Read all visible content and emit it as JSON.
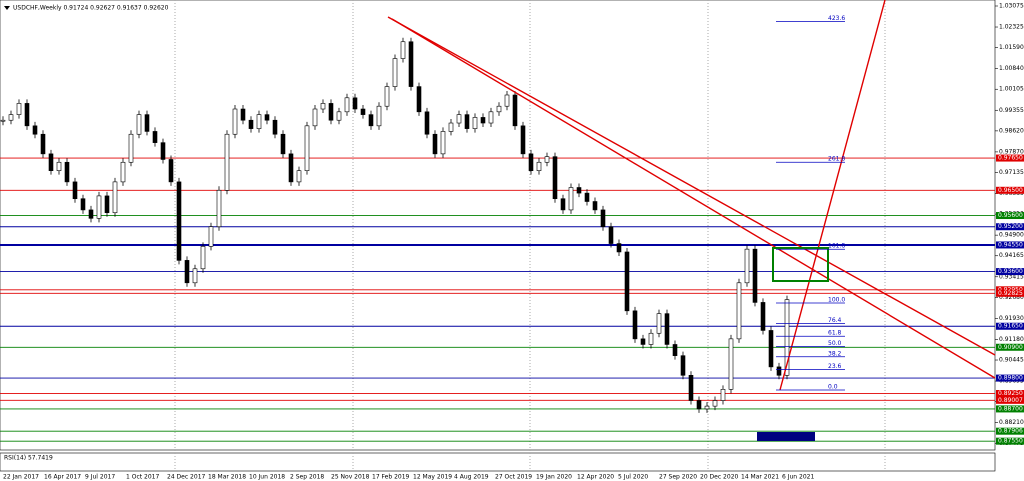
{
  "chart_data": {
    "type": "candlestick",
    "title": "USDCHF,Weekly  0.91724 0.92627 0.91637 0.92620",
    "indicator_label": "RSI(14) 57.7419",
    "values": [
      0.99,
      0.992,
      0.996,
      0.988,
      0.985,
      0.978,
      0.972,
      0.975,
      0.968,
      0.962,
      0.958,
      0.955,
      0.963,
      0.957,
      0.968,
      0.975,
      0.985,
      0.992,
      0.986,
      0.982,
      0.976,
      0.968,
      0.94,
      0.932,
      0.937,
      0.945,
      0.952,
      0.965,
      0.985,
      0.994,
      0.99,
      0.987,
      0.992,
      0.99,
      0.985,
      0.978,
      0.968,
      0.972,
      0.988,
      0.994,
      0.996,
      0.99,
      0.993,
      0.998,
      0.994,
      0.992,
      0.988,
      0.995,
      1.002,
      1.012,
      1.018,
      1.002,
      0.993,
      0.985,
      0.978,
      0.986,
      0.989,
      0.992,
      0.987,
      0.991,
      0.989,
      0.993,
      0.995,
      0.999,
      0.988,
      0.978,
      0.972,
      0.975,
      0.977,
      0.962,
      0.958,
      0.966,
      0.964,
      0.961,
      0.958,
      0.952,
      0.946,
      0.943,
      0.922,
      0.912,
      0.91,
      0.914,
      0.921,
      0.91,
      0.906,
      0.899,
      0.89,
      0.887,
      0.888,
      0.89,
      0.894,
      0.912,
      0.932,
      0.944,
      0.925,
      0.915,
      0.902,
      0.899,
      0.926
    ],
    "xticks": [
      "22 Jan 2017",
      "16 Apr 2017",
      "9 Jul 2017",
      "1 Oct 2017",
      "24 Dec 2017",
      "18 Mar 2018",
      "10 Jun 2018",
      "2 Sep 2018",
      "25 Nov 2018",
      "17 Feb 2019",
      "12 May 2019",
      "4 Aug 2019",
      "27 Oct 2019",
      "19 Jan 2020",
      "12 Apr 2020",
      "5 Jul 2020",
      "27 Sep 2020",
      "20 Dec 2020",
      "14 Mar 2021",
      "6 Jun 2021"
    ],
    "ylim": [
      0.87235,
      1.03289
    ],
    "yticks": [
      1.03075,
      1.02325,
      {
        "value": 1.0159,
        "label": "1.01590"
      },
      {
        "value": 1.0084,
        "label": "1.00840"
      },
      1.00105,
      0.99355,
      {
        "value": 0.9862,
        "label": "0.98620"
      },
      {
        "value": 0.9787,
        "label": "0.97870"
      },
      0.97135,
      0.96385,
      {
        "value": 0.9565,
        "label": "0.95650"
      },
      {
        "value": 0.949,
        "label": "0.94900"
      },
      0.94165,
      0.93415,
      {
        "value": 0.9268,
        "label": "0.92680"
      },
      {
        "value": 0.9193,
        "label": "0.91930"
      },
      {
        "value": 0.9118,
        "label": "0.91180"
      },
      0.90445,
      0.89695,
      {
        "value": 0.8896,
        "label": "0.88960"
      },
      {
        "value": 0.8821,
        "label": "0.88210"
      },
      0.87475
    ],
    "levels": [
      {
        "value": 0.9765,
        "label": "0.97650",
        "color": "#e00000"
      },
      {
        "value": 0.965,
        "label": "0.96500",
        "color": "#e00000"
      },
      {
        "value": 0.956,
        "label": "0.95600",
        "color": "#008000"
      },
      {
        "value": 0.952,
        "label": "0.95200",
        "color": "#0000a0"
      },
      {
        "value": 0.9455,
        "label": "0.94550",
        "color": "#0000a0"
      },
      {
        "value": 0.936,
        "label": "0.93600",
        "color": "#0000a0"
      },
      {
        "value": 0.9295,
        "label": "0.92950",
        "color": "#e00000"
      },
      {
        "value": 0.92825,
        "color": "#e00000"
      },
      {
        "value": 0.9165,
        "label": "0.91650",
        "color": "#0000a0"
      },
      {
        "value": 0.909,
        "label": "0.90900",
        "color": "#008000"
      },
      {
        "value": 0.898,
        "label": "0.89800",
        "color": "#0000a0"
      },
      {
        "value": 0.8925,
        "label": "0.89250",
        "color": "#e00000"
      },
      {
        "value": 0.89007,
        "color": "#e00000"
      },
      {
        "value": 0.887,
        "label": "0.88700",
        "color": "#008000"
      },
      {
        "value": 0.87906,
        "color": "#008000"
      },
      {
        "value": 0.8755,
        "label": "0.87550",
        "color": "#008000"
      }
    ],
    "fib_levels": [
      423.6,
      261.8,
      161.8,
      {
        "value": 100,
        "label": "100.0"
      },
      76.4,
      61.8,
      {
        "value": 50,
        "label": "50.0"
      },
      38.2,
      23.6,
      {
        "value": 0,
        "label": "0.0"
      }
    ]
  }
}
